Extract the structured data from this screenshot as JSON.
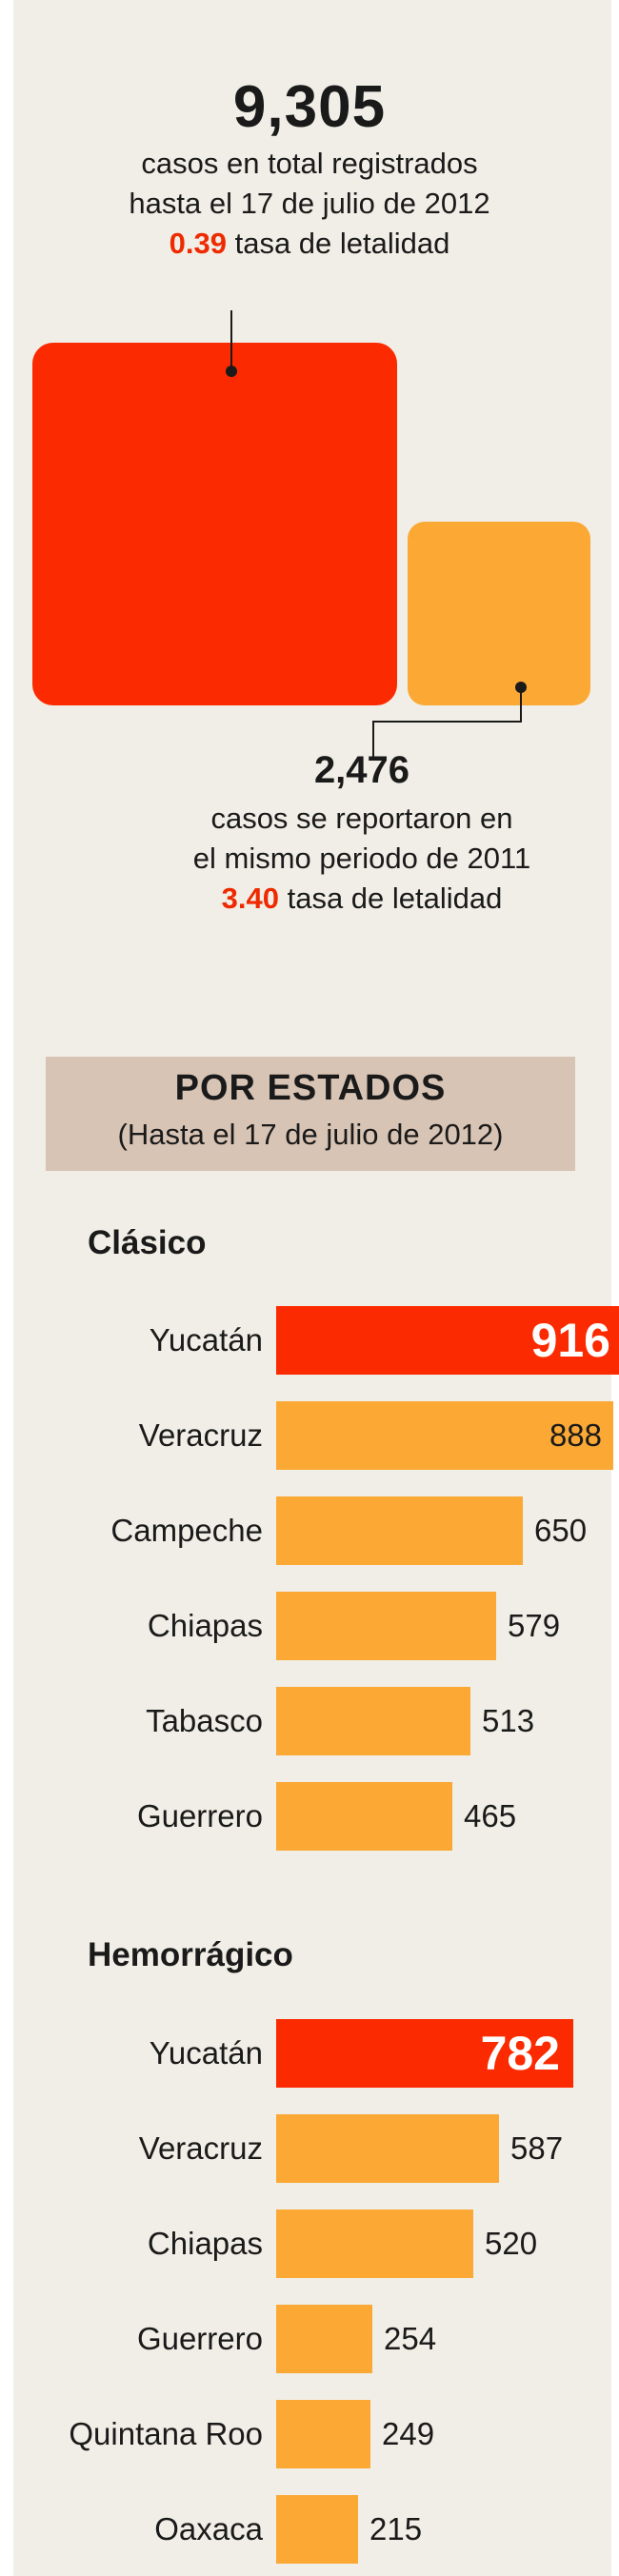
{
  "header": {
    "total_cases": "9,305",
    "line1": "casos en total registrados",
    "line2": "hasta el 17 de julio de 2012",
    "rate_value": "0.39",
    "rate_label": "tasa de letalidad"
  },
  "comparison": {
    "total_cases": "2,476",
    "line1": "casos se reportaron en",
    "line2": "el mismo periodo de 2011",
    "rate_value": "3.40",
    "rate_label": "tasa de letalidad"
  },
  "section": {
    "title": "POR ESTADOS",
    "subtitle": "(Hasta el 17 de julio de 2012)"
  },
  "colors": {
    "highlight": "#fb2a00",
    "bar": "#fba834",
    "band": "#d8c4b4",
    "background": "#f0eee6"
  },
  "chart_data": [
    {
      "type": "bar",
      "orientation": "horizontal",
      "title": "Clásico",
      "categories": [
        "Yucatán",
        "Veracruz",
        "Campeche",
        "Chiapas",
        "Tabasco",
        "Guerrero"
      ],
      "values": [
        916,
        888,
        650,
        579,
        513,
        465
      ],
      "value_labels": [
        "916",
        "888",
        "650",
        "579",
        "513",
        "465"
      ],
      "highlighted_index": 0
    },
    {
      "type": "bar",
      "orientation": "horizontal",
      "title": "Hemorrágico",
      "categories": [
        "Yucatán",
        "Veracruz",
        "Chiapas",
        "Guerrero",
        "Quintana Roo",
        "Oaxaca"
      ],
      "values": [
        782,
        587,
        520,
        254,
        249,
        215
      ],
      "value_labels": [
        "782",
        "587",
        "520",
        "254",
        "249",
        "215"
      ],
      "highlighted_index": 0
    }
  ]
}
